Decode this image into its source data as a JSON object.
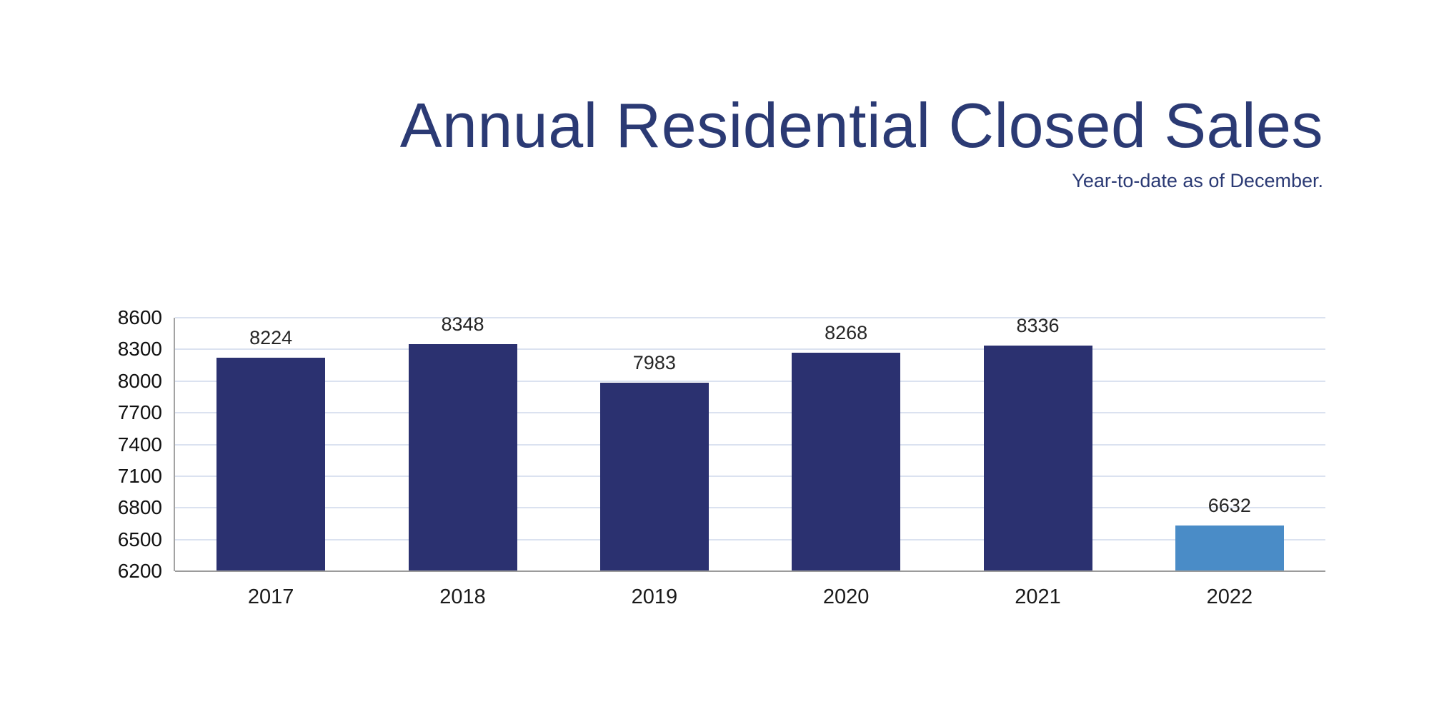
{
  "header": {
    "title": "Annual Residential Closed Sales",
    "subtitle": "Year-to-date as of December."
  },
  "colors": {
    "title_text": "#2b3a74",
    "bar_primary": "#2b3170",
    "bar_highlight": "#4a8cc7",
    "gridline": "#dbe2f0",
    "axis_line": "#9b9b9b",
    "tick_text": "#111111",
    "value_label_text": "#262626"
  },
  "chart_data": {
    "type": "bar",
    "title": "Annual Residential Closed Sales",
    "subtitle": "Year-to-date as of December.",
    "categories": [
      "2017",
      "2018",
      "2019",
      "2020",
      "2021",
      "2022"
    ],
    "values": [
      8224,
      8348,
      7983,
      8268,
      8336,
      6632
    ],
    "data_labels": [
      "8224",
      "8348",
      "7983",
      "8268",
      "8336",
      "6632"
    ],
    "bar_colors": [
      "#2b3170",
      "#2b3170",
      "#2b3170",
      "#2b3170",
      "#2b3170",
      "#4a8cc7"
    ],
    "highlight_index": 5,
    "xlabel": "",
    "ylabel": "",
    "ylim": [
      6200,
      8600
    ],
    "yticks": [
      6200,
      6500,
      6800,
      7100,
      7400,
      7700,
      8000,
      8300,
      8600
    ],
    "grid": true,
    "legend": "none"
  }
}
